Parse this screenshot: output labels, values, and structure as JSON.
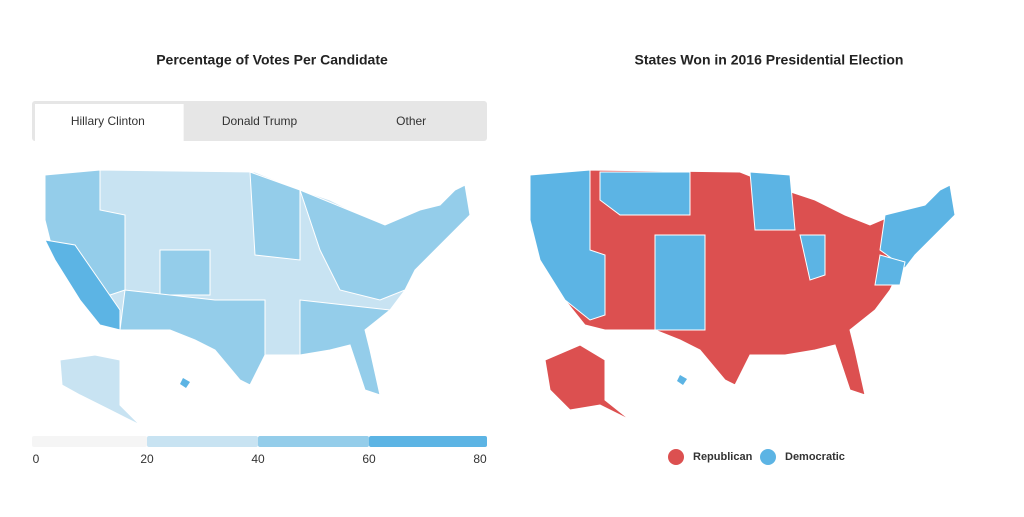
{
  "left_panel": {
    "title": "Percentage of Votes Per Candidate",
    "tabs": [
      "Hillary Clinton",
      "Donald Trump",
      "Other"
    ],
    "active_tab": 0,
    "scale": {
      "ticks": [
        0,
        20,
        40,
        60,
        80
      ],
      "colors": [
        "#f5f5f5",
        "#c8e3f2",
        "#94cdea",
        "#5cb4e4"
      ]
    }
  },
  "right_panel": {
    "title": "States Won in 2016 Presidential Election",
    "legend": [
      {
        "name": "Republican",
        "color": "#dc5050"
      },
      {
        "name": "Democratic",
        "color": "#5cb4e4"
      }
    ]
  }
}
